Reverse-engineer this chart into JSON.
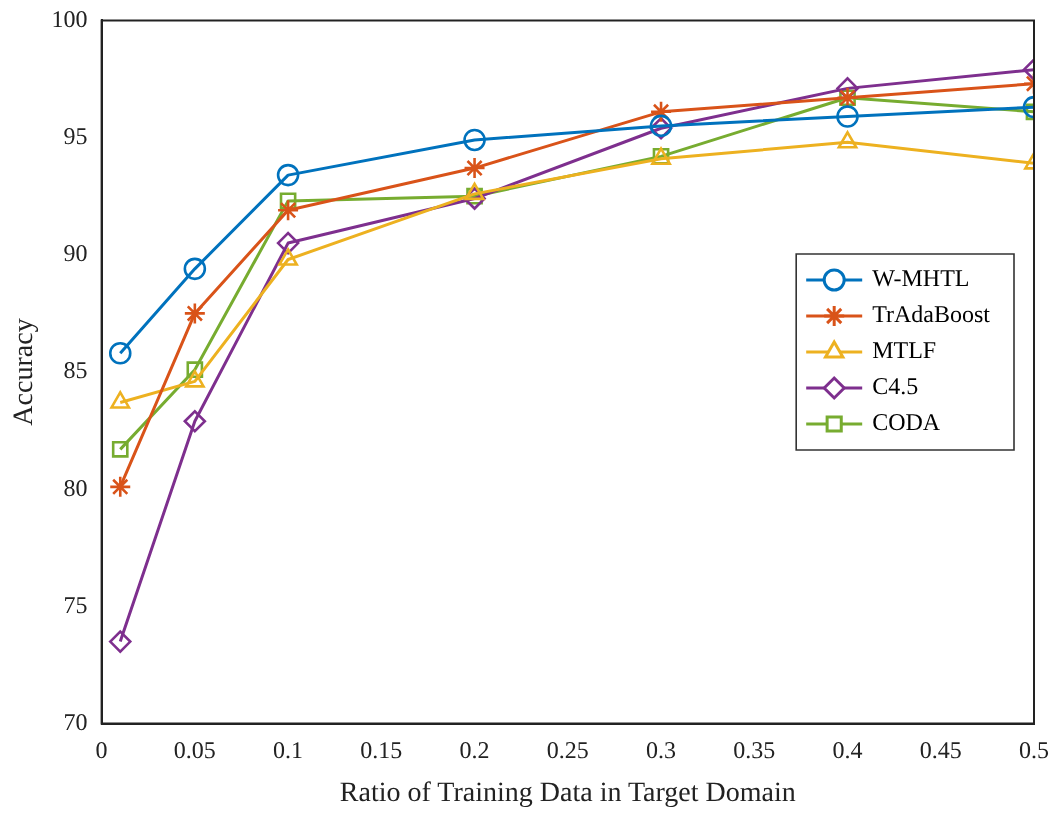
{
  "chart_data": {
    "type": "line",
    "xlabel": "Ratio of Training Data in Target Domain",
    "ylabel": "Accuracy",
    "x": [
      0.01,
      0.05,
      0.1,
      0.2,
      0.3,
      0.4,
      0.5
    ],
    "xlim": [
      0,
      0.5
    ],
    "xticks": [
      0,
      0.05,
      0.1,
      0.15,
      0.2,
      0.25,
      0.3,
      0.35,
      0.4,
      0.45,
      0.5
    ],
    "ylim": [
      70,
      100
    ],
    "yticks": [
      70,
      75,
      80,
      85,
      90,
      95,
      100
    ],
    "grid": false,
    "legend": "right",
    "line_style": "solid",
    "series": [
      {
        "name": "W-MHTL",
        "color": "#0072bd",
        "marker": "circle",
        "values": [
          85.8,
          89.4,
          93.4,
          94.9,
          95.5,
          95.9,
          96.3
        ]
      },
      {
        "name": "TrAdaBoost",
        "color": "#d95319",
        "marker": "cross",
        "values": [
          80.1,
          87.5,
          91.9,
          93.7,
          96.1,
          96.7,
          97.3
        ]
      },
      {
        "name": "MTLF",
        "color": "#edb120",
        "marker": "triangle",
        "values": [
          83.7,
          84.6,
          89.8,
          92.6,
          94.1,
          94.8,
          93.9
        ]
      },
      {
        "name": "C4.5",
        "color": "#7e2f8e",
        "marker": "diamond",
        "values": [
          73.5,
          82.9,
          90.5,
          92.4,
          95.4,
          97.1,
          97.9
        ]
      },
      {
        "name": "CODA",
        "color": "#77ac30",
        "marker": "square",
        "values": [
          81.7,
          85.1,
          92.3,
          92.5,
          94.2,
          96.7,
          96.1
        ]
      }
    ]
  }
}
